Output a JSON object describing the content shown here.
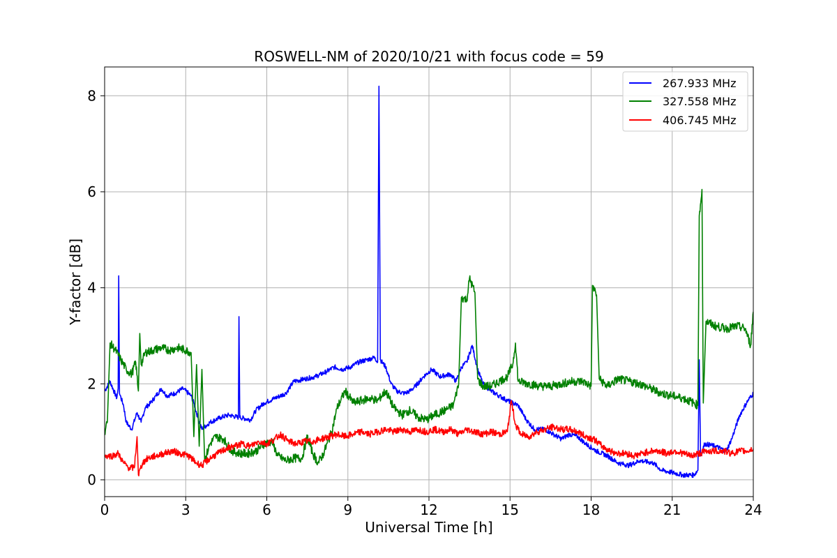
{
  "chart_data": {
    "type": "line",
    "title": "ROSWELL-NM of 2020/10/21 with focus code = 59",
    "xlabel": "Universal Time [h]",
    "ylabel": "Y-factor [dB]",
    "xlim": [
      0,
      24
    ],
    "ylim": [
      -0.35,
      8.6
    ],
    "xticks": [
      0,
      3,
      6,
      9,
      12,
      15,
      18,
      21,
      24
    ],
    "xtick_labels": [
      "0",
      "3",
      "6",
      "9",
      "12",
      "15",
      "18",
      "21",
      "24"
    ],
    "yticks": [
      0,
      2,
      4,
      6,
      8
    ],
    "ytick_labels": [
      "0",
      "2",
      "4",
      "6",
      "8"
    ],
    "grid": true,
    "legend_position": "top-right",
    "series": [
      {
        "name": "267.933 MHz",
        "color": "#0000ff",
        "points": [
          [
            0.0,
            1.85
          ],
          [
            0.2,
            2.05
          ],
          [
            0.45,
            1.7
          ],
          [
            0.5,
            1.9
          ],
          [
            0.52,
            4.25
          ],
          [
            0.55,
            1.8
          ],
          [
            0.7,
            1.55
          ],
          [
            0.8,
            1.2
          ],
          [
            1.0,
            1.05
          ],
          [
            1.2,
            1.4
          ],
          [
            1.35,
            1.2
          ],
          [
            1.5,
            1.5
          ],
          [
            1.7,
            1.6
          ],
          [
            1.9,
            1.75
          ],
          [
            2.1,
            1.9
          ],
          [
            2.3,
            1.75
          ],
          [
            2.6,
            1.8
          ],
          [
            2.9,
            1.9
          ],
          [
            3.2,
            1.75
          ],
          [
            3.3,
            1.6
          ],
          [
            3.45,
            1.3
          ],
          [
            3.6,
            1.05
          ],
          [
            3.9,
            1.2
          ],
          [
            4.3,
            1.3
          ],
          [
            4.6,
            1.35
          ],
          [
            4.95,
            1.3
          ],
          [
            4.97,
            3.4
          ],
          [
            5.0,
            1.3
          ],
          [
            5.4,
            1.25
          ],
          [
            5.6,
            1.45
          ],
          [
            5.9,
            1.6
          ],
          [
            6.3,
            1.7
          ],
          [
            6.7,
            1.8
          ],
          [
            7.0,
            2.05
          ],
          [
            7.4,
            2.1
          ],
          [
            7.8,
            2.15
          ],
          [
            8.2,
            2.25
          ],
          [
            8.5,
            2.35
          ],
          [
            8.8,
            2.3
          ],
          [
            9.1,
            2.35
          ],
          [
            9.4,
            2.45
          ],
          [
            9.7,
            2.5
          ],
          [
            10.0,
            2.55
          ],
          [
            10.1,
            2.45
          ],
          [
            10.15,
            8.2
          ],
          [
            10.2,
            2.5
          ],
          [
            10.4,
            2.35
          ],
          [
            10.6,
            2.0
          ],
          [
            10.8,
            1.85
          ],
          [
            11.1,
            1.8
          ],
          [
            11.3,
            1.85
          ],
          [
            11.5,
            1.95
          ],
          [
            11.8,
            2.15
          ],
          [
            12.1,
            2.3
          ],
          [
            12.4,
            2.15
          ],
          [
            12.8,
            2.2
          ],
          [
            13.0,
            2.05
          ],
          [
            13.2,
            2.35
          ],
          [
            13.4,
            2.45
          ],
          [
            13.6,
            2.8
          ],
          [
            13.8,
            2.3
          ],
          [
            14.0,
            2.0
          ],
          [
            14.3,
            1.85
          ],
          [
            14.6,
            1.75
          ],
          [
            14.9,
            1.65
          ],
          [
            15.1,
            1.6
          ],
          [
            15.3,
            1.55
          ],
          [
            15.6,
            1.25
          ],
          [
            15.9,
            1.05
          ],
          [
            16.3,
            1.05
          ],
          [
            16.6,
            0.95
          ],
          [
            16.9,
            0.85
          ],
          [
            17.2,
            0.95
          ],
          [
            17.5,
            0.9
          ],
          [
            17.8,
            0.75
          ],
          [
            18.2,
            0.6
          ],
          [
            18.6,
            0.5
          ],
          [
            19.0,
            0.35
          ],
          [
            19.4,
            0.3
          ],
          [
            19.8,
            0.4
          ],
          [
            20.3,
            0.35
          ],
          [
            20.6,
            0.2
          ],
          [
            21.0,
            0.15
          ],
          [
            21.4,
            0.1
          ],
          [
            21.8,
            0.1
          ],
          [
            21.95,
            0.2
          ],
          [
            22.0,
            2.5
          ],
          [
            22.05,
            0.5
          ],
          [
            22.2,
            0.75
          ],
          [
            22.6,
            0.7
          ],
          [
            23.0,
            0.6
          ],
          [
            23.2,
            0.85
          ],
          [
            23.5,
            1.35
          ],
          [
            23.8,
            1.65
          ],
          [
            24.0,
            1.8
          ]
        ]
      },
      {
        "name": "327.558 MHz",
        "color": "#008000",
        "points": [
          [
            0.0,
            1.0
          ],
          [
            0.1,
            1.2
          ],
          [
            0.2,
            2.85
          ],
          [
            0.4,
            2.7
          ],
          [
            0.6,
            2.5
          ],
          [
            0.8,
            2.3
          ],
          [
            1.0,
            2.2
          ],
          [
            1.15,
            2.45
          ],
          [
            1.25,
            1.85
          ],
          [
            1.3,
            3.05
          ],
          [
            1.35,
            2.4
          ],
          [
            1.5,
            2.65
          ],
          [
            1.8,
            2.7
          ],
          [
            2.1,
            2.75
          ],
          [
            2.4,
            2.7
          ],
          [
            2.7,
            2.75
          ],
          [
            3.0,
            2.7
          ],
          [
            3.2,
            2.65
          ],
          [
            3.3,
            0.9
          ],
          [
            3.4,
            2.4
          ],
          [
            3.5,
            0.7
          ],
          [
            3.6,
            2.3
          ],
          [
            3.7,
            0.4
          ],
          [
            3.9,
            0.75
          ],
          [
            4.1,
            0.9
          ],
          [
            4.4,
            0.85
          ],
          [
            4.7,
            0.6
          ],
          [
            5.0,
            0.55
          ],
          [
            5.3,
            0.55
          ],
          [
            5.6,
            0.6
          ],
          [
            5.9,
            0.75
          ],
          [
            6.2,
            0.8
          ],
          [
            6.4,
            0.5
          ],
          [
            6.7,
            0.4
          ],
          [
            7.0,
            0.45
          ],
          [
            7.3,
            0.45
          ],
          [
            7.5,
            0.9
          ],
          [
            7.7,
            0.55
          ],
          [
            7.9,
            0.35
          ],
          [
            8.1,
            0.55
          ],
          [
            8.4,
            1.0
          ],
          [
            8.6,
            1.5
          ],
          [
            8.9,
            1.85
          ],
          [
            9.2,
            1.6
          ],
          [
            9.5,
            1.65
          ],
          [
            9.8,
            1.7
          ],
          [
            10.1,
            1.65
          ],
          [
            10.4,
            1.85
          ],
          [
            10.7,
            1.5
          ],
          [
            11.0,
            1.35
          ],
          [
            11.3,
            1.45
          ],
          [
            11.6,
            1.3
          ],
          [
            11.9,
            1.25
          ],
          [
            12.2,
            1.35
          ],
          [
            12.6,
            1.45
          ],
          [
            12.9,
            1.55
          ],
          [
            13.1,
            2.0
          ],
          [
            13.2,
            3.8
          ],
          [
            13.4,
            3.75
          ],
          [
            13.5,
            4.2
          ],
          [
            13.7,
            3.9
          ],
          [
            13.8,
            2.1
          ],
          [
            14.0,
            1.95
          ],
          [
            14.3,
            1.95
          ],
          [
            14.6,
            2.05
          ],
          [
            14.9,
            2.15
          ],
          [
            15.1,
            2.4
          ],
          [
            15.2,
            2.85
          ],
          [
            15.3,
            2.05
          ],
          [
            15.7,
            2.0
          ],
          [
            16.1,
            1.95
          ],
          [
            16.5,
            1.95
          ],
          [
            16.9,
            2.0
          ],
          [
            17.3,
            2.05
          ],
          [
            17.7,
            2.05
          ],
          [
            18.0,
            1.95
          ],
          [
            18.05,
            4.05
          ],
          [
            18.2,
            3.85
          ],
          [
            18.3,
            2.1
          ],
          [
            18.6,
            1.95
          ],
          [
            19.0,
            2.1
          ],
          [
            19.4,
            2.05
          ],
          [
            19.8,
            2.0
          ],
          [
            20.2,
            1.9
          ],
          [
            20.6,
            1.8
          ],
          [
            21.0,
            1.75
          ],
          [
            21.4,
            1.7
          ],
          [
            21.8,
            1.6
          ],
          [
            21.95,
            1.55
          ],
          [
            22.0,
            5.5
          ],
          [
            22.1,
            6.05
          ],
          [
            22.15,
            1.6
          ],
          [
            22.25,
            3.3
          ],
          [
            22.6,
            3.2
          ],
          [
            23.0,
            3.15
          ],
          [
            23.4,
            3.2
          ],
          [
            23.7,
            3.15
          ],
          [
            23.9,
            2.8
          ],
          [
            24.0,
            3.5
          ]
        ]
      },
      {
        "name": "406.745 MHz",
        "color": "#ff0000",
        "points": [
          [
            0.0,
            0.5
          ],
          [
            0.3,
            0.5
          ],
          [
            0.5,
            0.55
          ],
          [
            0.7,
            0.35
          ],
          [
            0.9,
            0.25
          ],
          [
            1.1,
            0.25
          ],
          [
            1.2,
            0.9
          ],
          [
            1.25,
            0.1
          ],
          [
            1.4,
            0.35
          ],
          [
            1.6,
            0.45
          ],
          [
            1.9,
            0.5
          ],
          [
            2.2,
            0.55
          ],
          [
            2.5,
            0.6
          ],
          [
            2.8,
            0.55
          ],
          [
            3.1,
            0.5
          ],
          [
            3.4,
            0.35
          ],
          [
            3.6,
            0.3
          ],
          [
            3.9,
            0.45
          ],
          [
            4.2,
            0.55
          ],
          [
            4.5,
            0.65
          ],
          [
            4.8,
            0.7
          ],
          [
            5.1,
            0.75
          ],
          [
            5.4,
            0.7
          ],
          [
            5.7,
            0.8
          ],
          [
            6.0,
            0.75
          ],
          [
            6.3,
            0.85
          ],
          [
            6.5,
            0.95
          ],
          [
            6.8,
            0.8
          ],
          [
            7.1,
            0.75
          ],
          [
            7.4,
            0.8
          ],
          [
            7.7,
            0.8
          ],
          [
            8.0,
            0.85
          ],
          [
            8.3,
            0.9
          ],
          [
            8.6,
            0.95
          ],
          [
            8.9,
            0.9
          ],
          [
            9.2,
            0.95
          ],
          [
            9.5,
            1.0
          ],
          [
            9.8,
            0.95
          ],
          [
            10.1,
            1.0
          ],
          [
            10.4,
            1.05
          ],
          [
            10.7,
            1.0
          ],
          [
            11.0,
            1.05
          ],
          [
            11.3,
            1.0
          ],
          [
            11.6,
            1.05
          ],
          [
            11.9,
            1.0
          ],
          [
            12.2,
            1.05
          ],
          [
            12.5,
            1.0
          ],
          [
            12.8,
            1.05
          ],
          [
            13.1,
            0.95
          ],
          [
            13.4,
            1.05
          ],
          [
            13.7,
            1.0
          ],
          [
            14.0,
            0.95
          ],
          [
            14.3,
            1.0
          ],
          [
            14.6,
            0.95
          ],
          [
            14.9,
            1.0
          ],
          [
            15.05,
            1.65
          ],
          [
            15.2,
            1.15
          ],
          [
            15.4,
            0.95
          ],
          [
            15.7,
            0.9
          ],
          [
            16.0,
            1.0
          ],
          [
            16.3,
            1.05
          ],
          [
            16.6,
            1.1
          ],
          [
            16.9,
            1.05
          ],
          [
            17.2,
            1.05
          ],
          [
            17.5,
            1.0
          ],
          [
            17.8,
            0.9
          ],
          [
            18.1,
            0.85
          ],
          [
            18.4,
            0.7
          ],
          [
            18.7,
            0.6
          ],
          [
            19.0,
            0.55
          ],
          [
            19.3,
            0.55
          ],
          [
            19.6,
            0.5
          ],
          [
            19.9,
            0.55
          ],
          [
            20.2,
            0.6
          ],
          [
            20.5,
            0.6
          ],
          [
            20.8,
            0.55
          ],
          [
            21.1,
            0.6
          ],
          [
            21.4,
            0.55
          ],
          [
            21.7,
            0.5
          ],
          [
            22.0,
            0.55
          ],
          [
            22.3,
            0.6
          ],
          [
            22.6,
            0.6
          ],
          [
            22.9,
            0.6
          ],
          [
            23.2,
            0.55
          ],
          [
            23.5,
            0.6
          ],
          [
            23.8,
            0.6
          ],
          [
            24.0,
            0.65
          ]
        ]
      }
    ]
  }
}
